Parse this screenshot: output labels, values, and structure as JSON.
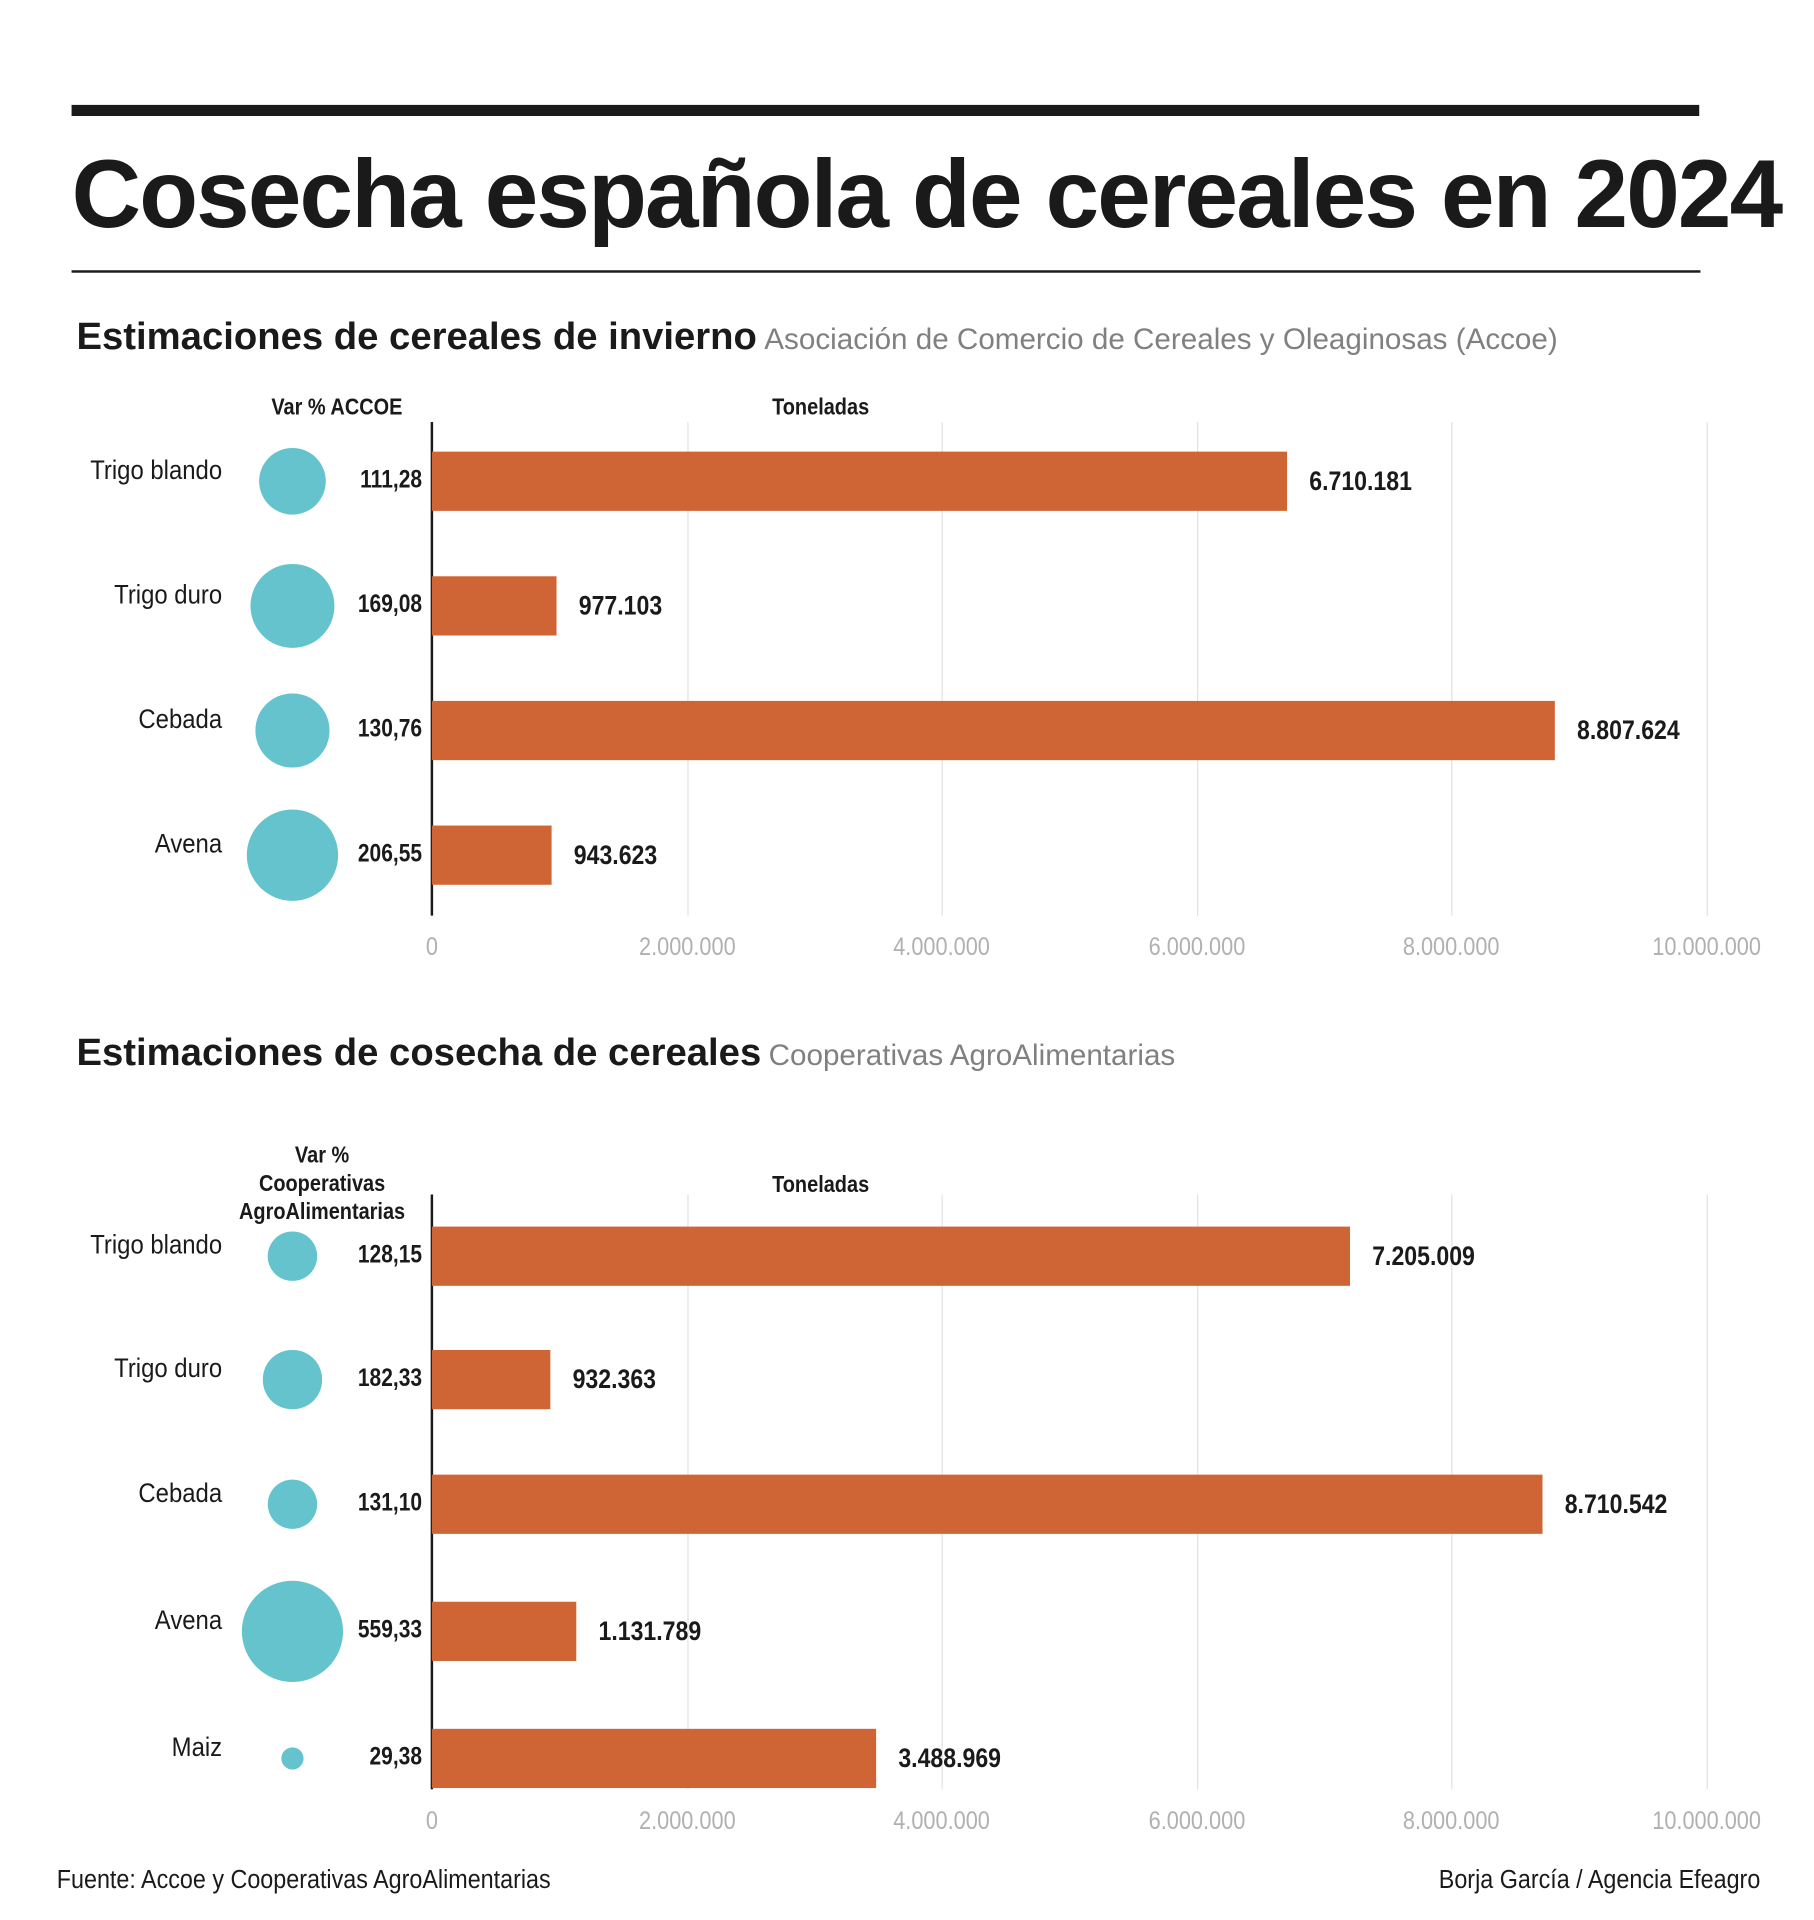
{
  "title": "Cosecha española de cereales en 2024",
  "chart_data": [
    {
      "type": "bar",
      "title": "Estimaciones de cereales de invierno",
      "source_label": "Asociación de Comercio de Cereales y Oleaginosas (Accoe)",
      "bubble_header": "Var % ACCOE",
      "xlabel": "Toneladas",
      "categories": [
        "Trigo blando",
        "Trigo duro",
        "Cebada",
        "Avena"
      ],
      "values": [
        6710181,
        977103,
        8807624,
        943623
      ],
      "value_labels": [
        "6.710.181",
        "977.103",
        "8.807.624",
        "943.623"
      ],
      "var_pct": [
        111.28,
        169.08,
        130.76,
        206.55
      ],
      "var_pct_labels": [
        "111,28",
        "169,08",
        "130,76",
        "206,55"
      ],
      "xlim": [
        0,
        10000000
      ],
      "ticks": [
        0,
        2000000,
        4000000,
        6000000,
        8000000,
        10000000
      ],
      "tick_labels": [
        "0",
        "2.000.000",
        "4.000.000",
        "6.000.000",
        "8.000.000",
        "10.000.000"
      ],
      "grid": true
    },
    {
      "type": "bar",
      "title": "Estimaciones de cosecha de cereales",
      "source_label": "Cooperativas AgroAlimentarias",
      "bubble_header": "Var % Cooperativas AgroAlimentarias",
      "xlabel": "Toneladas",
      "categories": [
        "Trigo blando",
        "Trigo duro",
        "Cebada",
        "Avena",
        "Maiz"
      ],
      "values": [
        7205009,
        932363,
        8710542,
        1131789,
        3488969
      ],
      "value_labels": [
        "7.205.009",
        "932.363",
        "8.710.542",
        "1.131.789",
        "3.488.969"
      ],
      "var_pct": [
        128.15,
        182.33,
        131.1,
        559.33,
        29.38
      ],
      "var_pct_labels": [
        "128,15",
        "182,33",
        "131,10",
        "559,33",
        "29,38"
      ],
      "xlim": [
        0,
        10000000
      ],
      "ticks": [
        0,
        2000000,
        4000000,
        6000000,
        8000000,
        10000000
      ],
      "tick_labels": [
        "0",
        "2.000.000",
        "4.000.000",
        "6.000.000",
        "8.000.000",
        "10.000.000"
      ],
      "grid": true
    }
  ],
  "colors": {
    "bar": "#cf6535",
    "bubble": "#64c3cc",
    "text": "#1a1a1a",
    "tick": "#b0b0b0"
  },
  "footer": {
    "source": "Fuente: Accoe y Cooperativas AgroAlimentarias",
    "credit": "Borja García / Agencia Efeagro"
  }
}
